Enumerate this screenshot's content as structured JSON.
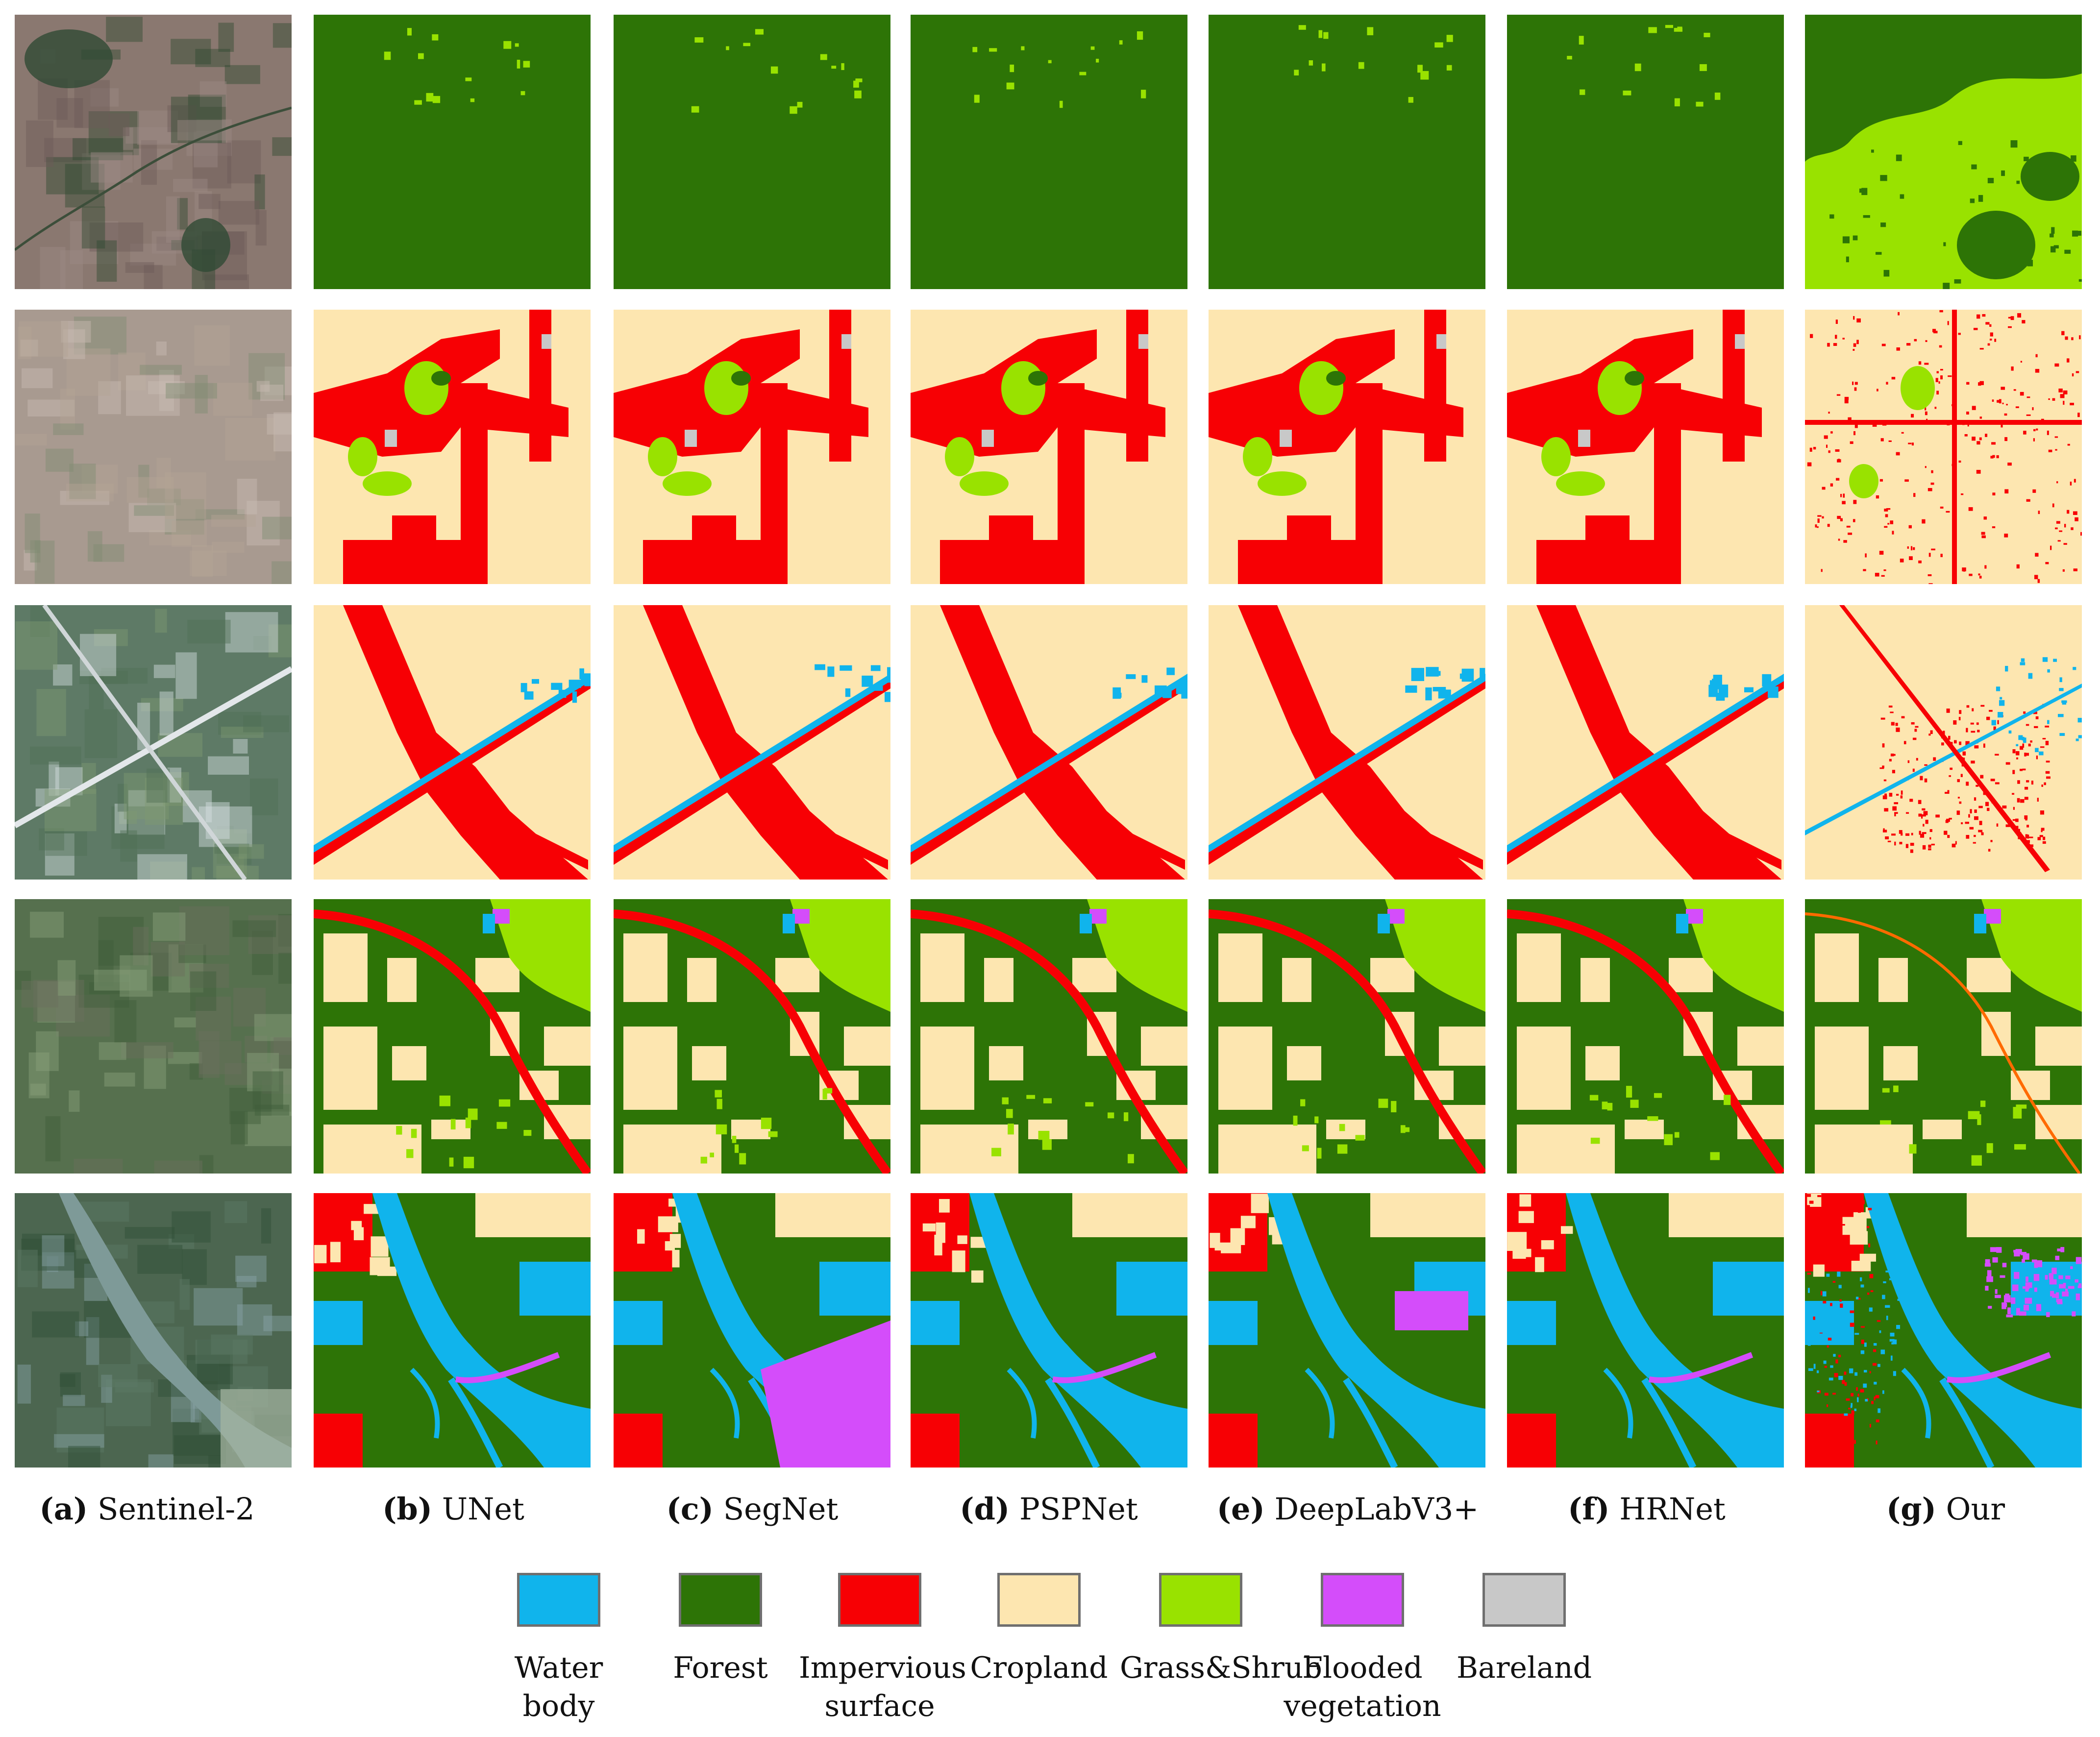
{
  "colors": {
    "water": "#10b4ec",
    "forest": "#2d7406",
    "impervious": "#f70004",
    "cropland": "#fde6b0",
    "grass": "#99e200",
    "flooded": "#d44dfa",
    "bare": "#c8c8c8"
  },
  "captions": [
    {
      "letter": "(a)",
      "text": "Sentinel-2"
    },
    {
      "letter": "(b)",
      "text": "UNet"
    },
    {
      "letter": "(c)",
      "text": "SegNet"
    },
    {
      "letter": "(d)",
      "text": "PSPNet"
    },
    {
      "letter": "(e)",
      "text": "DeepLabV3+"
    },
    {
      "letter": "(f)",
      "text": "HRNet"
    },
    {
      "letter": "(g)",
      "text": "Our"
    }
  ],
  "legend": [
    {
      "label": "Water body",
      "line2": "",
      "color_key": "water"
    },
    {
      "label": "Forest",
      "line2": "",
      "color_key": "forest"
    },
    {
      "label": "Impervious",
      "line2": "surface",
      "color_key": "impervious"
    },
    {
      "label": "Cropland",
      "line2": "",
      "color_key": "cropland"
    },
    {
      "label": "Grass&Shrub",
      "line2": "",
      "color_key": "grass"
    },
    {
      "label": "Flooded",
      "line2": "",
      "color_key": "flooded"
    },
    {
      "label": "Bareland",
      "line2": "vegetation",
      "color_key": "bare"
    }
  ]
}
